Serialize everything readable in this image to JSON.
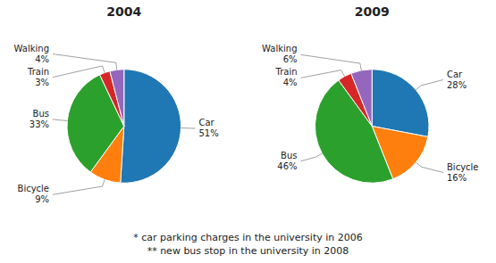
{
  "chart_data": [
    {
      "type": "pie",
      "title": "2004",
      "categories": [
        "Car",
        "Bicycle",
        "Bus",
        "Train",
        "Walking"
      ],
      "values": [
        51,
        9,
        33,
        3,
        4
      ],
      "value_labels": [
        "51%",
        "9%",
        "33%",
        "3%",
        "4%"
      ],
      "data_labels": true,
      "annotations": [
        "* car parking charges in the university in 2006",
        "** new bus stop in the university in 2008"
      ]
    },
    {
      "type": "pie",
      "title": "2009",
      "categories": [
        "Car",
        "Bicycle",
        "Bus",
        "Train",
        "Walking"
      ],
      "values": [
        28,
        16,
        46,
        4,
        6
      ],
      "value_labels": [
        "28%",
        "16%",
        "46%",
        "4%",
        "6%"
      ],
      "data_labels": true
    }
  ]
}
